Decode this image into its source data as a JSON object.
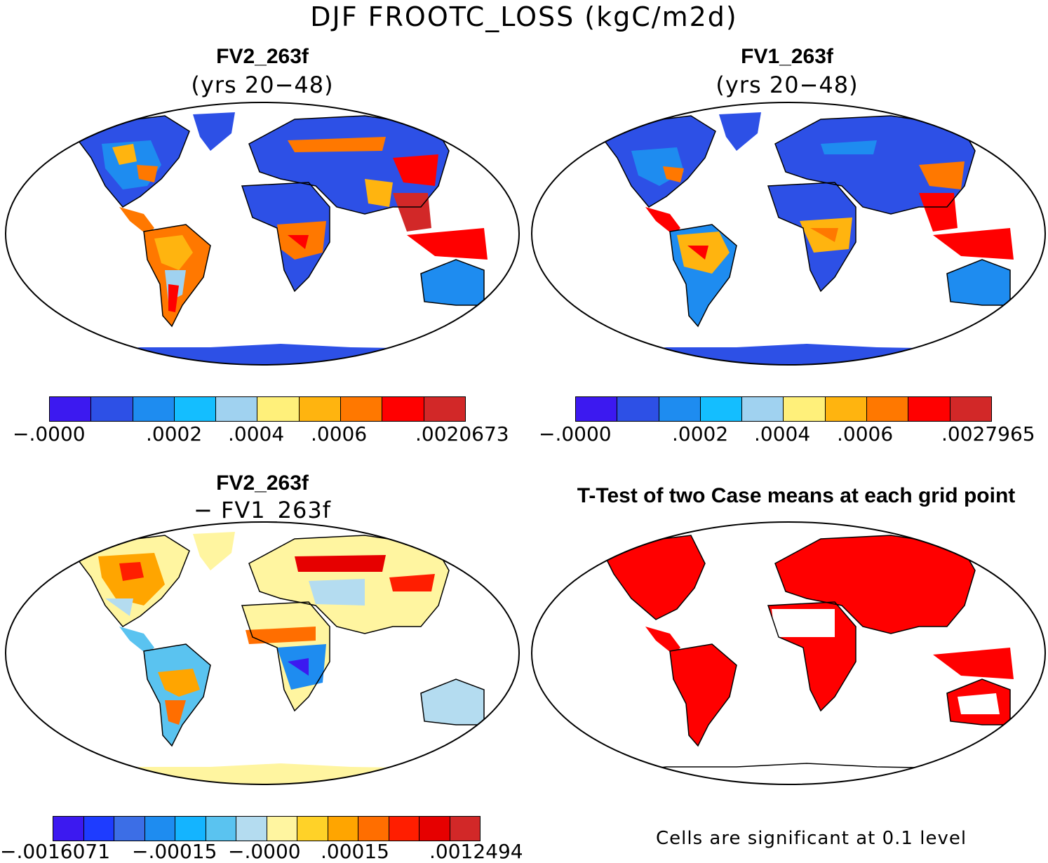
{
  "figure_title": "DJF FROOTC_LOSS (kgC/m2d)",
  "panels": {
    "fv2": {
      "title": "FV2_263f",
      "subtitle": "(yrs 20−48)",
      "colorbar": {
        "colors": [
          "#3c19f0",
          "#2d50e6",
          "#1e8cf0",
          "#14beff",
          "#a0d2f0",
          "#fff07a",
          "#ffb40f",
          "#ff7800",
          "#ff0000",
          "#d22828"
        ],
        "labels": [
          "−.0000",
          ".0002",
          ".0004",
          ".0006",
          ".0020673"
        ]
      }
    },
    "fv1": {
      "title": "FV1_263f",
      "subtitle": "(yrs 20−48)",
      "colorbar": {
        "colors": [
          "#3c19f0",
          "#2d50e6",
          "#1e8cf0",
          "#14beff",
          "#a0d2f0",
          "#fff07a",
          "#ffb40f",
          "#ff7800",
          "#ff0000",
          "#d22828"
        ],
        "labels": [
          "−.0000",
          ".0002",
          ".0004",
          ".0006",
          ".0027965"
        ]
      }
    },
    "diff": {
      "title": "FV2_263f",
      "subtitle": "− FV1_263f",
      "colorbar": {
        "colors": [
          "#3c19f0",
          "#1e3cff",
          "#3c6ee6",
          "#1e8cf0",
          "#14b4ff",
          "#5ac3f0",
          "#b4dcf0",
          "#fff5a0",
          "#ffd228",
          "#ffa500",
          "#ff6e00",
          "#ff1e00",
          "#e60000",
          "#d22828"
        ],
        "labels": [
          "−.0016071",
          "−.00015",
          "−.0000",
          ".00015",
          ".0012494"
        ]
      }
    },
    "ttest": {
      "title": "T-Test of two Case means at each grid point",
      "note": "Cells are significant at 0.1 level",
      "significant_color": "#ff0000"
    }
  }
}
